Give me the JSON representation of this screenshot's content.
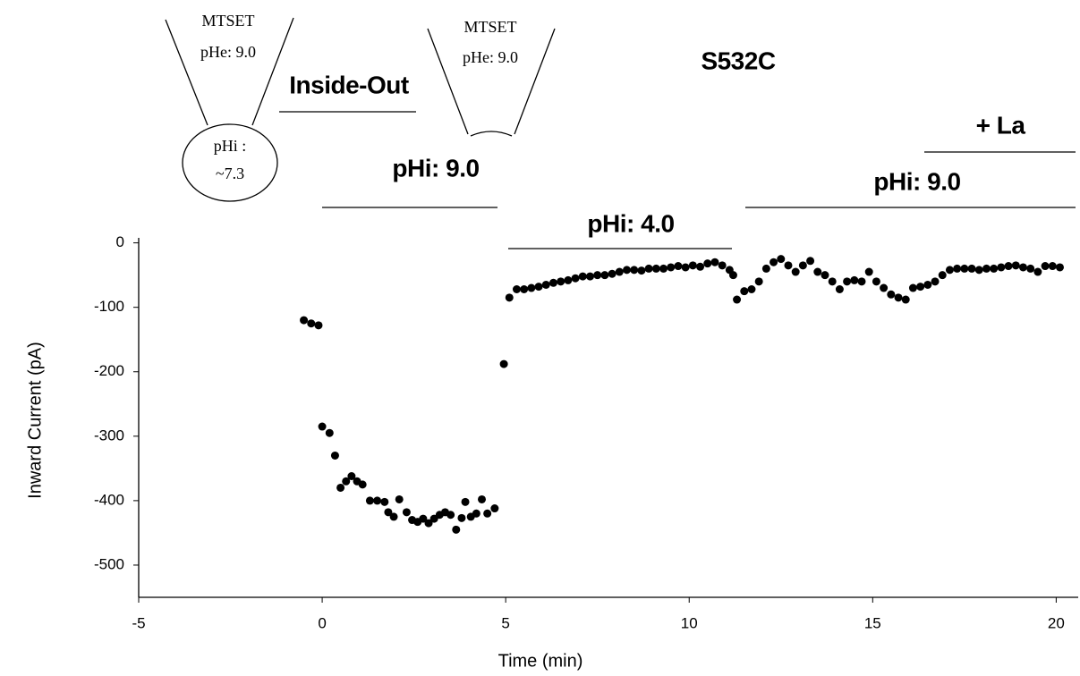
{
  "chart_data": {
    "type": "scatter",
    "title": "S532C",
    "x_label": "Time (min)",
    "y_label": "Inward Current (pA)",
    "annotations": [
      "MTSET",
      "pHe: 9.0",
      "pHi :",
      "~7.3",
      "Inside-Out",
      "MTSET",
      "pHe: 9.0",
      "pHi: 9.0",
      "pHi: 4.0",
      "pHi: 9.0",
      "+ La"
    ],
    "xlim": [
      -5,
      20.6
    ],
    "ylim": [
      -550,
      5
    ],
    "xticks": [
      -5,
      0,
      5,
      10,
      15,
      20
    ],
    "yticks": [
      0,
      -100,
      -200,
      -300,
      -400,
      -500
    ],
    "grid": false,
    "color": "#000000",
    "x": [
      -0.5,
      -0.3,
      -0.1,
      0,
      0.2,
      0.35,
      0.5,
      0.65,
      0.8,
      0.95,
      1.1,
      1.3,
      1.5,
      1.7,
      1.8,
      1.95,
      2.1,
      2.3,
      2.45,
      2.6,
      2.75,
      2.9,
      3.05,
      3.2,
      3.35,
      3.5,
      3.65,
      3.8,
      3.9,
      4.05,
      4.2,
      4.35,
      4.5,
      4.7,
      4.95,
      5.1,
      5.3,
      5.5,
      5.7,
      5.9,
      6.1,
      6.3,
      6.5,
      6.7,
      6.9,
      7.1,
      7.3,
      7.5,
      7.7,
      7.9,
      8.1,
      8.3,
      8.5,
      8.7,
      8.9,
      9.1,
      9.3,
      9.5,
      9.7,
      9.9,
      10.1,
      10.3,
      10.5,
      10.7,
      10.9,
      11.1,
      11.2,
      11.3,
      11.5,
      11.7,
      11.9,
      12.1,
      12.3,
      12.5,
      12.7,
      12.9,
      13.1,
      13.3,
      13.5,
      13.7,
      13.9,
      14.1,
      14.3,
      14.5,
      14.7,
      14.9,
      15.1,
      15.3,
      15.5,
      15.7,
      15.9,
      16.1,
      16.3,
      16.5,
      16.7,
      16.9,
      17.1,
      17.3,
      17.5,
      17.7,
      17.9,
      18.1,
      18.3,
      18.5,
      18.7,
      18.9,
      19.1,
      19.3,
      19.5,
      19.7,
      19.9,
      20.1
    ],
    "values": [
      -120,
      -125,
      -128,
      -285,
      -295,
      -330,
      -380,
      -370,
      -362,
      -370,
      -375,
      -400,
      -400,
      -402,
      -418,
      -425,
      -398,
      -418,
      -430,
      -433,
      -428,
      -435,
      -428,
      -422,
      -418,
      -422,
      -445,
      -427,
      -402,
      -425,
      -420,
      -398,
      -420,
      -412,
      -188,
      -85,
      -72,
      -72,
      -70,
      -68,
      -65,
      -62,
      -60,
      -58,
      -55,
      -52,
      -52,
      -50,
      -50,
      -48,
      -45,
      -42,
      -42,
      -43,
      -40,
      -40,
      -40,
      -38,
      -36,
      -38,
      -35,
      -37,
      -32,
      -30,
      -35,
      -42,
      -50,
      -88,
      -75,
      -72,
      -60,
      -40,
      -30,
      -25,
      -35,
      -45,
      -35,
      -28,
      -45,
      -50,
      -60,
      -72,
      -60,
      -58,
      -60,
      -45,
      -60,
      -70,
      -80,
      -85,
      -88,
      -70,
      -68,
      -65,
      -60,
      -50,
      -42,
      -40,
      -40,
      -40,
      -42,
      -40,
      -40,
      -38,
      -36,
      -35,
      -38,
      -40,
      -45,
      -36,
      -36,
      -38
    ]
  }
}
